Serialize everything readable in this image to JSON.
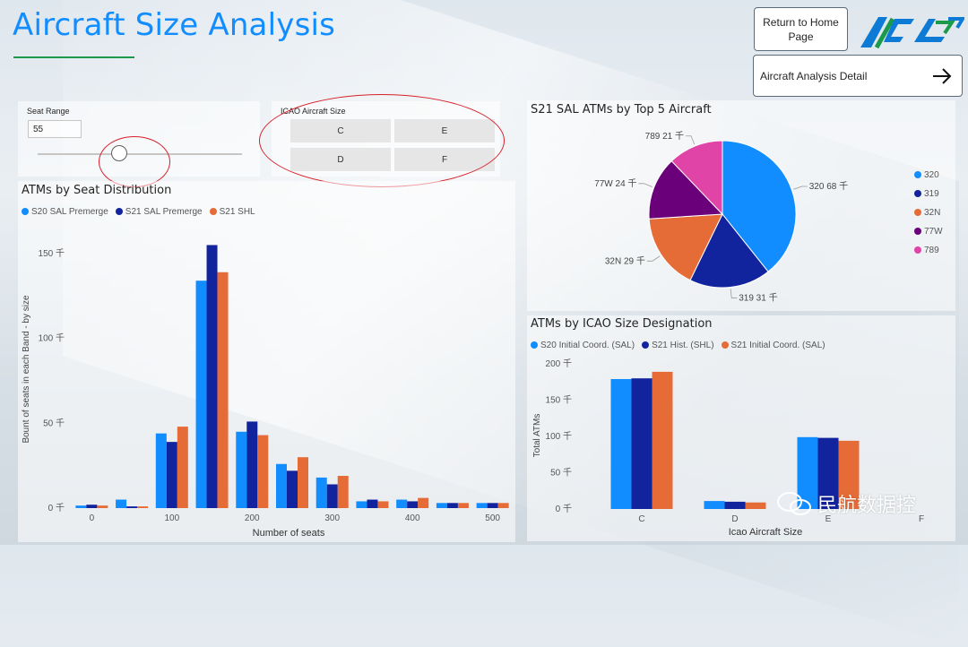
{
  "header": {
    "title": "Aircraft Size Analysis"
  },
  "nav": {
    "home_label": "Return to Home Page",
    "detail_label": "Aircraft Analysis Detail"
  },
  "colors": {
    "blue": "#118DFF",
    "navy": "#12239E",
    "orange": "#E66C37",
    "purple": "#6B007B",
    "pink": "#E044A7",
    "title_blue": "#118dff"
  },
  "slicers": {
    "seat_range": {
      "title": "Seat Range",
      "value": "55",
      "fraction": 0.4
    },
    "icao_size": {
      "title": "ICAO Aircraft Size",
      "options": [
        "C",
        "E",
        "D",
        "F"
      ]
    }
  },
  "watermark": "民航数据控",
  "chart_data": [
    {
      "type": "bar",
      "title": "ATMs by Seat Distribution",
      "xlabel": "Number of seats",
      "ylabel": "Bount of seats in each Band - by size",
      "yticks": [
        "0 千",
        "50 千",
        "100 千",
        "150 千"
      ],
      "xticks": [
        "0",
        "100",
        "200",
        "300",
        "400",
        "500"
      ],
      "ylim": [
        0,
        160
      ],
      "categories": [
        "0",
        "50",
        "100",
        "150",
        "200",
        "250",
        "300",
        "350",
        "400",
        "450",
        "500"
      ],
      "series": [
        {
          "name": "S20 SAL Premerge",
          "values": [
            1.5,
            5,
            44,
            134,
            45,
            26,
            18,
            4,
            5,
            3,
            3
          ]
        },
        {
          "name": "S21 SAL Premerge",
          "values": [
            2,
            1,
            39,
            155,
            51,
            22,
            14,
            5,
            4,
            3,
            3
          ]
        },
        {
          "name": "S21 SHL",
          "values": [
            1.5,
            1,
            48,
            139,
            43,
            30,
            19,
            4,
            6,
            3,
            3
          ]
        }
      ],
      "legend": "top-left"
    },
    {
      "type": "pie",
      "title": "S21 SAL ATMs by Top 5 Aircraft",
      "slices": [
        {
          "name": "320",
          "value": 68,
          "label": "320 68 千"
        },
        {
          "name": "319",
          "value": 31,
          "label": "319 31 千"
        },
        {
          "name": "32N",
          "value": 29,
          "label": "32N 29 千"
        },
        {
          "name": "77W",
          "value": 24,
          "label": "77W 24 千"
        },
        {
          "name": "789",
          "value": 21,
          "label": "789 21 千"
        }
      ],
      "legend": "right"
    },
    {
      "type": "bar",
      "title": "ATMs by ICAO Size Designation",
      "xlabel": "Icao Aircraft Size",
      "ylabel": "Total ATMs",
      "yticks": [
        "0 千",
        "50 千",
        "100 千",
        "150 千",
        "200 千"
      ],
      "ylim": [
        0,
        200
      ],
      "categories": [
        "C",
        "D",
        "E",
        "F"
      ],
      "series": [
        {
          "name": "S20 Initial Coord. (SAL)",
          "values": [
            179,
            11,
            99,
            0
          ]
        },
        {
          "name": "S21 Hist. (SHL)",
          "values": [
            180,
            10,
            98,
            0
          ]
        },
        {
          "name": "S21 Initial Coord. (SAL)",
          "values": [
            189,
            9,
            94,
            0
          ]
        }
      ],
      "legend": "top-left"
    }
  ]
}
